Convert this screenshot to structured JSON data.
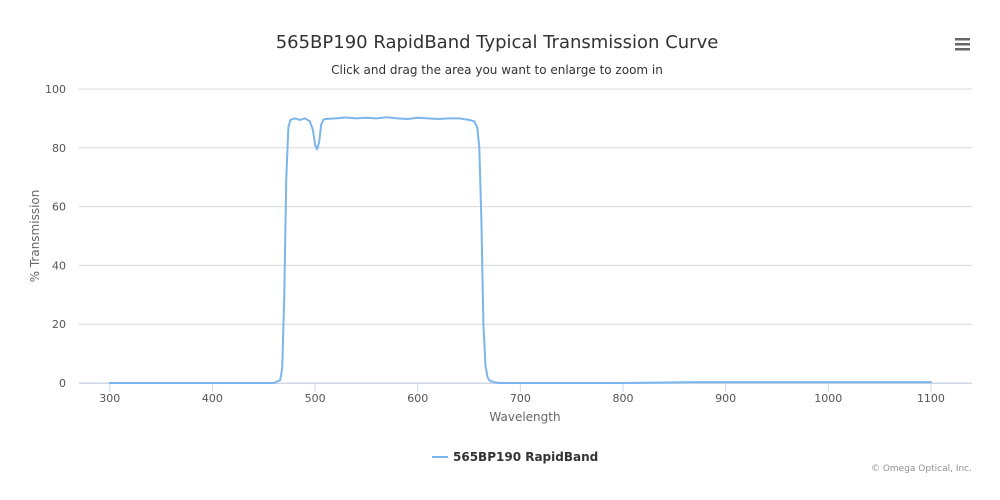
{
  "chart_data": {
    "type": "line",
    "title": "565BP190 RapidBand Typical Transmission Curve",
    "subtitle": "Click and drag the area you want to enlarge to zoom in",
    "xlabel": "Wavelength",
    "ylabel": "% Transmission",
    "xlim": [
      270,
      1140
    ],
    "ylim": [
      0,
      100
    ],
    "xticks": [
      300,
      400,
      500,
      600,
      700,
      800,
      900,
      1000,
      1100
    ],
    "yticks": [
      0,
      20,
      40,
      60,
      80,
      100
    ],
    "grid": true,
    "legend_position": "bottom-center",
    "series": [
      {
        "name": "565BP190 RapidBand",
        "color": "#7cb5ec",
        "x": [
          300,
          400,
          460,
          466,
          468,
          470,
          472,
          474,
          476,
          480,
          485,
          490,
          495,
          498,
          500,
          502,
          504,
          506,
          508,
          510,
          520,
          530,
          540,
          550,
          560,
          570,
          580,
          590,
          600,
          610,
          620,
          630,
          640,
          650,
          655,
          658,
          660,
          662,
          664,
          666,
          668,
          670,
          675,
          680,
          700,
          800,
          870,
          900,
          1000,
          1050,
          1100
        ],
        "y": [
          0,
          0,
          0,
          1,
          5,
          30,
          70,
          87,
          89.5,
          90,
          89.5,
          90,
          89,
          86,
          81,
          79.5,
          82,
          88,
          89.5,
          89.8,
          90,
          90.3,
          90,
          90.2,
          90,
          90.4,
          90,
          89.8,
          90.2,
          90,
          89.8,
          90,
          90,
          89.5,
          89,
          87,
          80,
          55,
          20,
          6,
          2,
          0.8,
          0.2,
          0,
          0,
          0,
          0.3,
          0.3,
          0.3,
          0.3,
          0.3
        ]
      }
    ]
  },
  "credits": "© Omega Optical, Inc.",
  "menu": {
    "icon": "hamburger-menu-icon"
  }
}
